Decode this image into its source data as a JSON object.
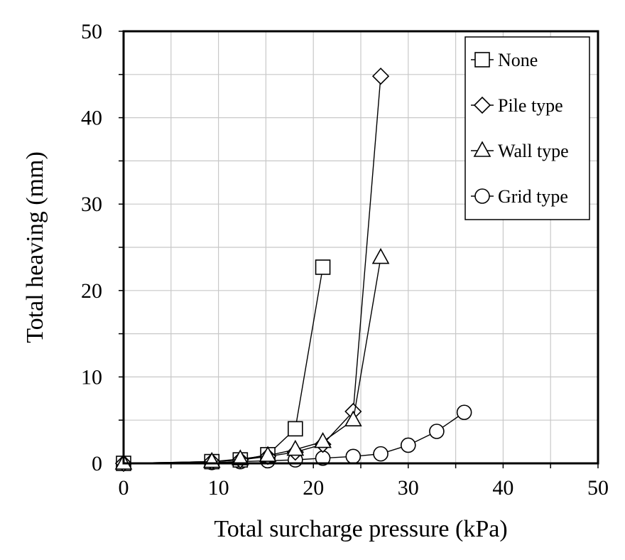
{
  "chart_data": {
    "type": "scatter",
    "title": "",
    "xlabel": "Total surcharge pressure (kPa)",
    "ylabel": "Total heaving (mm)",
    "xlim": [
      0,
      50
    ],
    "ylim": [
      0,
      50
    ],
    "xticks": [
      "0",
      "10",
      "20",
      "30",
      "40",
      "50"
    ],
    "yticks": [
      "0",
      "10",
      "20",
      "30",
      "40",
      "50"
    ],
    "grid": true,
    "legend_position": "top-right",
    "colors": {
      "grid": "#c8c8c8",
      "line": "#000000",
      "marker_fill": "#ffffff"
    },
    "series": [
      {
        "name": "None",
        "marker": "square",
        "x": [
          0,
          9.3,
          12.3,
          15.2,
          18.1,
          21.0
        ],
        "y": [
          0,
          0.2,
          0.4,
          1.0,
          4.0,
          22.7
        ]
      },
      {
        "name": "Pile type",
        "marker": "diamond",
        "x": [
          0,
          9.3,
          12.3,
          15.2,
          18.1,
          21.0,
          24.2,
          27.1
        ],
        "y": [
          0,
          0.2,
          0.4,
          0.8,
          1.3,
          2.2,
          6.0,
          44.8
        ]
      },
      {
        "name": "Wall type",
        "marker": "triangle",
        "x": [
          0,
          9.3,
          12.3,
          15.2,
          18.1,
          21.0,
          24.2,
          27.1
        ],
        "y": [
          0,
          0.2,
          0.5,
          0.9,
          1.6,
          2.5,
          5.0,
          23.8
        ]
      },
      {
        "name": "Grid type",
        "marker": "circle",
        "x": [
          0,
          9.3,
          12.3,
          15.2,
          18.1,
          21.0,
          24.2,
          27.1,
          30.0,
          33.0,
          35.9
        ],
        "y": [
          0,
          0.1,
          0.2,
          0.3,
          0.4,
          0.6,
          0.8,
          1.1,
          2.1,
          3.7,
          5.9
        ]
      }
    ]
  }
}
